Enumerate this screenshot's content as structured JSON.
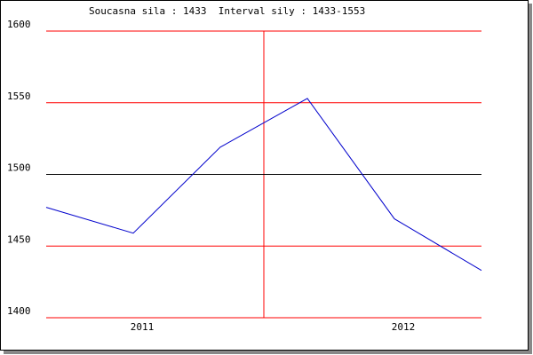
{
  "chart_data": {
    "type": "line",
    "title": "Soucasna sila : 1433  Interval sily : 1433-1553",
    "categories": [
      null,
      "2011",
      null,
      null,
      "2012",
      null
    ],
    "series": [
      {
        "name": "sila",
        "color": "#0000cc",
        "values": [
          1477,
          1459,
          1519,
          1553,
          1469,
          1433
        ]
      }
    ],
    "ylim": [
      1400,
      1600
    ],
    "yticks": [
      1400,
      1450,
      1500,
      1550,
      1600
    ],
    "grid": true,
    "grid_color": "#ff0000",
    "reference_line": {
      "value": 1500,
      "color": "#000000"
    }
  }
}
